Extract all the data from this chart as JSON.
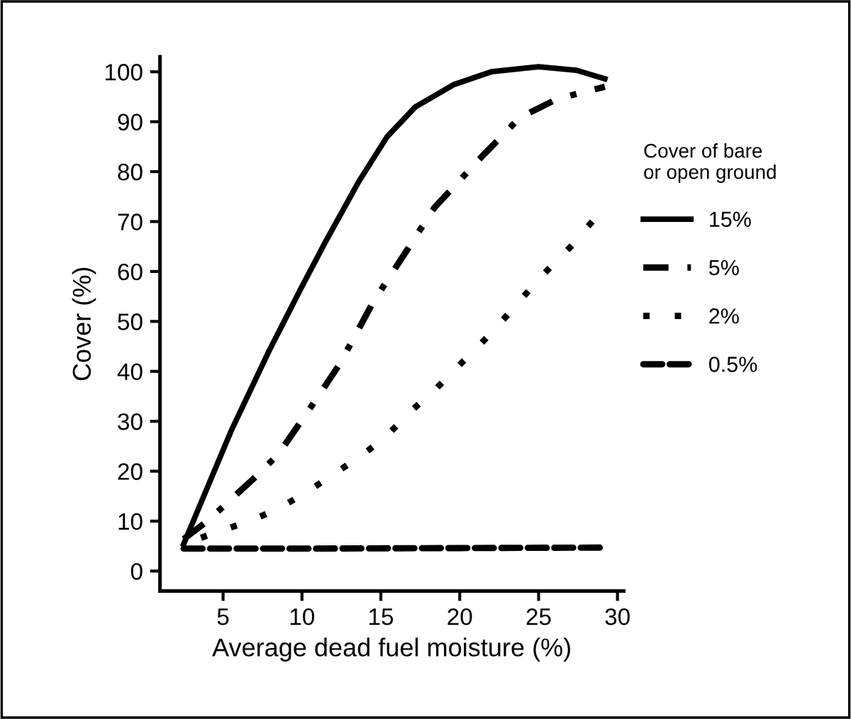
{
  "chart_data": {
    "type": "line",
    "xlabel": "Average dead fuel moisture (%)",
    "ylabel": "Cover (%)",
    "legend_title": "Cover of bare\nor open ground",
    "xlim": [
      1,
      30.4
    ],
    "ylim": [
      -4,
      103
    ],
    "xticks": [
      5,
      10,
      15,
      20,
      25,
      30
    ],
    "yticks": [
      0,
      10,
      20,
      30,
      40,
      50,
      60,
      70,
      80,
      90,
      100
    ],
    "grid": false,
    "legend": "right",
    "marker": "none",
    "series": [
      {
        "name": "15%",
        "color": "#000000",
        "line_style": "solid",
        "x": [
          2.5,
          5.5,
          7.9,
          10,
          11.5,
          13.6,
          15.4,
          17.2,
          19.6,
          22,
          25,
          27.4,
          29.2
        ],
        "values": [
          5.4,
          28,
          44,
          57,
          66,
          78,
          87,
          93,
          97.4,
          100,
          101,
          100.3,
          98.6
        ]
      },
      {
        "name": "5%",
        "color": "#000000",
        "line_style": "dashdot",
        "x": [
          2.5,
          4,
          7,
          8.5,
          10.6,
          12.4,
          14.5,
          16.6,
          18.4,
          21.4,
          23.8,
          26.2,
          29.2
        ],
        "values": [
          6.4,
          10,
          18.7,
          23.4,
          33,
          41.5,
          53.8,
          64,
          72.8,
          83,
          90.8,
          94.6,
          97
        ]
      },
      {
        "name": "2%",
        "color": "#000000",
        "line_style": "dotted",
        "x": [
          2.5,
          4.6,
          6.7,
          8.5,
          10.3,
          12.1,
          13.9,
          15.4,
          16.9,
          18.4,
          19.9,
          21.4,
          22.8,
          24.1,
          25.6,
          27.1,
          28.4
        ],
        "values": [
          5.4,
          7.8,
          10,
          12.5,
          15.8,
          19.6,
          23.4,
          27.2,
          32,
          36.2,
          41,
          45.7,
          50.5,
          55.2,
          60.4,
          65.2,
          70
        ]
      },
      {
        "name": "0.5%",
        "color": "#000000",
        "line_style": "dashed",
        "x": [
          2.5,
          10,
          20,
          29.2
        ],
        "values": [
          4.5,
          4.5,
          4.6,
          4.7
        ]
      }
    ]
  }
}
